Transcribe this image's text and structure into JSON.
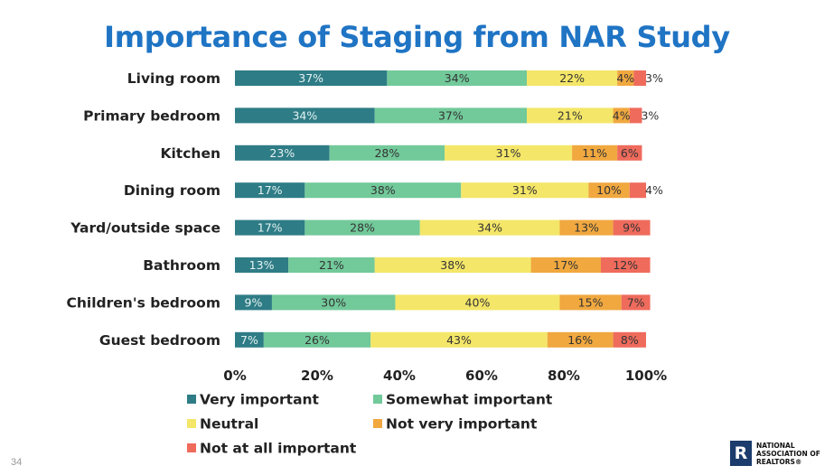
{
  "title": "Importance of Staging from NAR Study",
  "page_number": "34",
  "logo": {
    "mark": "R",
    "lines": [
      "NATIONAL",
      "ASSOCIATION OF",
      "REALTORS®"
    ]
  },
  "colors": {
    "very_important": "#2e7c86",
    "somewhat_important": "#72c99a",
    "neutral": "#f4e668",
    "not_very_important": "#f0a83f",
    "not_at_all_important": "#ef6b5c"
  },
  "chart_data": {
    "type": "bar",
    "orientation": "horizontal",
    "stacked": true,
    "title": "Importance of Staging from NAR Study",
    "categories": [
      "Living room",
      "Primary bedroom",
      "Kitchen",
      "Dining room",
      "Yard/outside space",
      "Bathroom",
      "Children's bedroom",
      "Guest bedroom"
    ],
    "series": [
      {
        "name": "Very important",
        "color": "#2e7c86",
        "values": [
          37,
          34,
          23,
          17,
          17,
          13,
          9,
          7
        ]
      },
      {
        "name": "Somewhat important",
        "color": "#72c99a",
        "values": [
          34,
          37,
          28,
          38,
          28,
          21,
          30,
          26
        ]
      },
      {
        "name": "Neutral",
        "color": "#f4e668",
        "values": [
          22,
          21,
          31,
          31,
          34,
          38,
          40,
          43
        ]
      },
      {
        "name": "Not very important",
        "color": "#f0a83f",
        "values": [
          4,
          4,
          11,
          10,
          13,
          17,
          15,
          16
        ]
      },
      {
        "name": "Not at all important",
        "color": "#ef6b5c",
        "values": [
          3,
          3,
          6,
          4,
          9,
          12,
          7,
          8
        ]
      }
    ],
    "segment_labels": [
      [
        "37%",
        "34%",
        "22%",
        "4%",
        "3%"
      ],
      [
        "34%",
        "37%",
        "21%",
        "4%",
        "3%"
      ],
      [
        "23%",
        "28%",
        "31%",
        "11%",
        "6%"
      ],
      [
        "17%",
        "38%",
        "31%",
        "10%",
        "4%"
      ],
      [
        "17%",
        "28%",
        "34%",
        "13%",
        "9%"
      ],
      [
        "13%",
        "21%",
        "38%",
        "17%",
        "12%"
      ],
      [
        "9%",
        "30%",
        "40%",
        "15%",
        "7%"
      ],
      [
        "7%",
        "26%",
        "43%",
        "16%",
        "8%"
      ]
    ],
    "xlim": [
      0,
      100
    ],
    "xticks": [
      0,
      20,
      40,
      60,
      80,
      100
    ],
    "xtick_labels": [
      "0%",
      "20%",
      "40%",
      "60%",
      "80%",
      "100%"
    ],
    "grid": false,
    "legend_position": "bottom"
  }
}
